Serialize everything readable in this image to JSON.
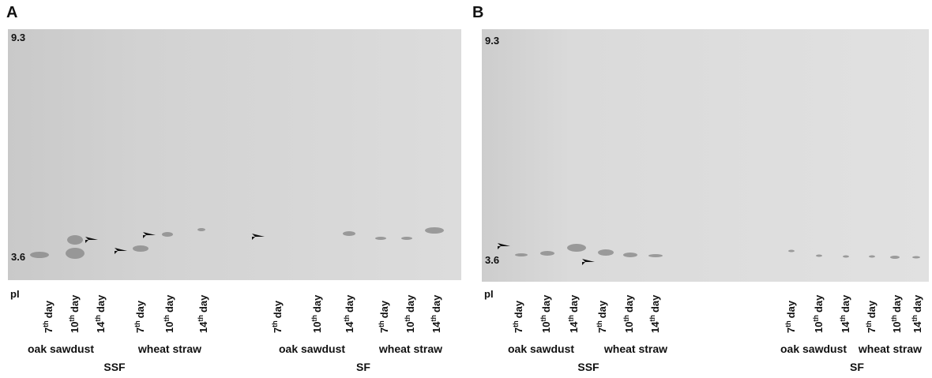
{
  "panels": [
    {
      "label": "A",
      "top_pi": "9.3",
      "bottom_pi": "3.6",
      "pi_label": "pI",
      "groups": [
        {
          "name": "SSF",
          "substrates": [
            {
              "name": "oak sawdust",
              "lanes": [
                {
                  "n": "7",
                  "sup": "th",
                  "word": "day"
                },
                {
                  "n": "10",
                  "sup": "th",
                  "word": "day"
                },
                {
                  "n": "14",
                  "sup": "th",
                  "word": "day"
                }
              ]
            },
            {
              "name": "wheat straw",
              "lanes": [
                {
                  "n": "7",
                  "sup": "th",
                  "word": "day"
                },
                {
                  "n": "10",
                  "sup": "th",
                  "word": "day"
                },
                {
                  "n": "14",
                  "sup": "th",
                  "word": "day"
                }
              ]
            }
          ]
        },
        {
          "name": "SF",
          "substrates": [
            {
              "name": "oak sawdust",
              "lanes": [
                {
                  "n": "7",
                  "sup": "th",
                  "word": "day"
                },
                {
                  "n": "10",
                  "sup": "th",
                  "word": "day"
                },
                {
                  "n": "14",
                  "sup": "th",
                  "word": "day"
                }
              ]
            },
            {
              "name": "wheat straw",
              "lanes": [
                {
                  "n": "7",
                  "sup": "th",
                  "word": "day"
                },
                {
                  "n": "10",
                  "sup": "th",
                  "word": "day"
                },
                {
                  "n": "14",
                  "sup": "th",
                  "word": "day"
                }
              ]
            }
          ]
        }
      ]
    },
    {
      "label": "B",
      "top_pi": "9.3",
      "bottom_pi": "3.6",
      "pi_label": "pI",
      "groups": [
        {
          "name": "SSF",
          "substrates": [
            {
              "name": "oak sawdust",
              "lanes": [
                {
                  "n": "7",
                  "sup": "th",
                  "word": "day"
                },
                {
                  "n": "10",
                  "sup": "th",
                  "word": "day"
                },
                {
                  "n": "14",
                  "sup": "th",
                  "word": "day"
                }
              ]
            },
            {
              "name": "wheat straw",
              "lanes": [
                {
                  "n": "7",
                  "sup": "th",
                  "word": "day"
                },
                {
                  "n": "10",
                  "sup": "th",
                  "word": "day"
                },
                {
                  "n": "14",
                  "sup": "th",
                  "word": "day"
                }
              ]
            }
          ]
        },
        {
          "name": "SF",
          "substrates": [
            {
              "name": "oak sawdust",
              "lanes": [
                {
                  "n": "7",
                  "sup": "th",
                  "word": "day"
                },
                {
                  "n": "10",
                  "sup": "th",
                  "word": "day"
                },
                {
                  "n": "14",
                  "sup": "th",
                  "word": "day"
                }
              ]
            },
            {
              "name": "wheat straw",
              "lanes": [
                {
                  "n": "7",
                  "sup": "th",
                  "word": "day"
                },
                {
                  "n": "10",
                  "sup": "th",
                  "word": "day"
                },
                {
                  "n": "14",
                  "sup": "th",
                  "word": "day"
                }
              ]
            }
          ]
        }
      ]
    }
  ]
}
